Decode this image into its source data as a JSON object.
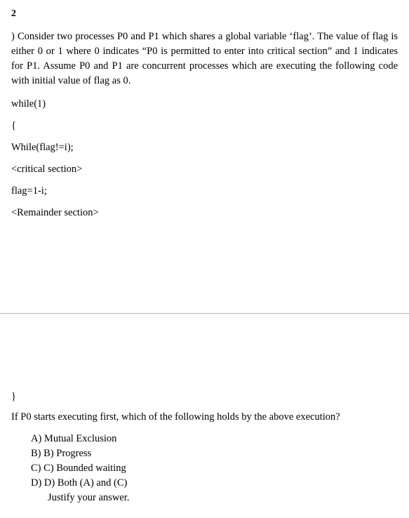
{
  "question_number": "2",
  "question_text": ") Consider two processes P0 and P1 which shares a global variable ‘flag’. The value of flag is either 0 or 1 where 0 indicates “P0 is permitted to enter into critical section” and 1 indicates for P1. Assume P0 and P1 are concurrent processes which are executing the following code with initial value of flag as 0.",
  "code_lines": {
    "l1": "while(1)",
    "l2": "{",
    "l3": "While(flag!=i);",
    "l4": "<critical section>",
    "l5": "flag=1-i;",
    "l6": "<Remainder section>"
  },
  "closing_brace": "}",
  "follow_question": "If P0 starts executing first, which of the following holds by the above execution?",
  "options": {
    "a": "A) Mutual Exclusion",
    "b": "B) B) Progress",
    "c": "C) C) Bounded waiting",
    "d": "D) D) Both (A) and (C)",
    "justify": "Justify your answer."
  }
}
